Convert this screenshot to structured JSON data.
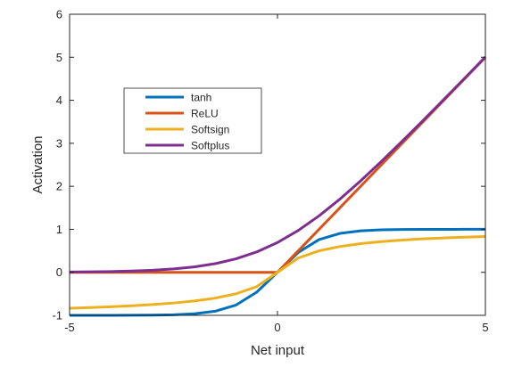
{
  "chart_data": {
    "type": "line",
    "title": "",
    "xlabel": "Net input",
    "ylabel": "Activation",
    "xlim": [
      -5,
      5
    ],
    "ylim": [
      -1,
      6
    ],
    "xticks": [
      "-5",
      "0",
      "5"
    ],
    "yticks": [
      "-1",
      "0",
      "1",
      "2",
      "3",
      "4",
      "5",
      "6"
    ],
    "grid": false,
    "legend_position": "upper-left",
    "x": [
      -5,
      -4.5,
      -4,
      -3.5,
      -3,
      -2.5,
      -2,
      -1.5,
      -1,
      -0.5,
      0,
      0.5,
      1,
      1.5,
      2,
      2.5,
      3,
      3.5,
      4,
      4.5,
      5
    ],
    "series": [
      {
        "name": "tanh",
        "color": "#0072BD",
        "values": [
          -1.0,
          -1.0,
          -0.999,
          -0.998,
          -0.995,
          -0.987,
          -0.964,
          -0.905,
          -0.762,
          -0.462,
          0.0,
          0.462,
          0.762,
          0.905,
          0.964,
          0.987,
          0.995,
          0.998,
          0.999,
          1.0,
          1.0
        ]
      },
      {
        "name": "ReLU",
        "color": "#D95319",
        "values": [
          0,
          0,
          0,
          0,
          0,
          0,
          0,
          0,
          0,
          0,
          0,
          0.5,
          1,
          1.5,
          2,
          2.5,
          3,
          3.5,
          4,
          4.5,
          5
        ]
      },
      {
        "name": "Softsign",
        "color": "#EDB120",
        "values": [
          -0.833,
          -0.818,
          -0.8,
          -0.778,
          -0.75,
          -0.714,
          -0.667,
          -0.6,
          -0.5,
          -0.333,
          0.0,
          0.333,
          0.5,
          0.6,
          0.667,
          0.714,
          0.75,
          0.778,
          0.8,
          0.818,
          0.833
        ]
      },
      {
        "name": "Softplus",
        "color": "#7E2F8E",
        "values": [
          0.007,
          0.011,
          0.018,
          0.03,
          0.049,
          0.079,
          0.127,
          0.201,
          0.313,
          0.474,
          0.693,
          0.974,
          1.313,
          1.701,
          2.127,
          2.579,
          3.049,
          3.53,
          4.018,
          4.511,
          5.007
        ]
      }
    ]
  }
}
